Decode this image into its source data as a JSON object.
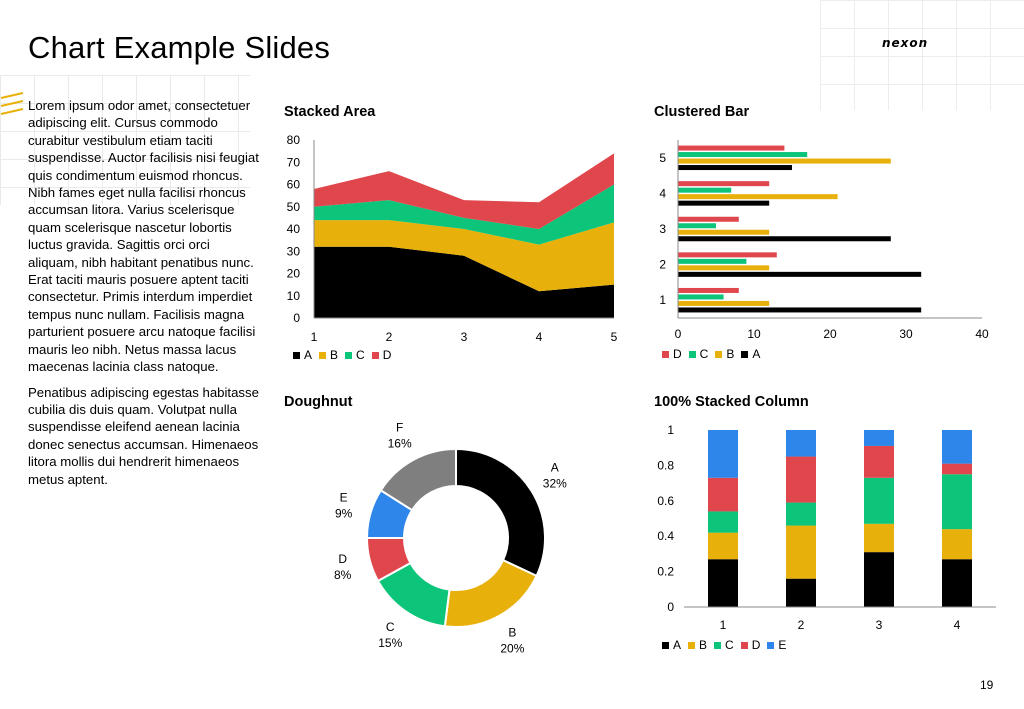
{
  "slide": {
    "title": "Chart Example Slides",
    "logo_text": "nexon",
    "page_number": "19",
    "paragraphs": [
      "Lorem ipsum odor amet, consectetuer adipiscing elit. Cursus commodo curabitur vestibulum etiam taciti suspendisse. Auctor facilisis nisi feugiat quis condimentum euismod rhoncus. Nibh fames eget nulla facilisi rhoncus accumsan litora. Varius scelerisque quam scelerisque nascetur lobortis luctus gravida. Sagittis orci orci aliquam, nibh habitant penatibus nunc. Erat taciti mauris posuere aptent taciti consectetur. Primis interdum imperdiet tempus nunc nullam. Facilisis magna parturient posuere arcu natoque facilisi mauris leo nibh. Netus massa lacus maecenas lacinia class natoque.",
      "Penatibus adipiscing egestas habitasse cubilia dis duis quam. Volutpat nulla suspendisse eleifend aenean lacinia donec senectus accumsan. Himenaeos litora mollis dui hendrerit himenaeos metus aptent."
    ]
  },
  "colors": {
    "A": "#000000",
    "B": "#E8B00A",
    "C": "#0CC47A",
    "D": "#E0474C",
    "E": "#2E86EB",
    "F": "#7F7F7F",
    "accent": "#E8B00A"
  },
  "chart_data": [
    {
      "id": "stacked-area",
      "type": "area",
      "title": "Stacked Area",
      "x": [
        1,
        2,
        3,
        4,
        5
      ],
      "ylim": [
        0,
        80
      ],
      "yticks": [
        0,
        10,
        20,
        30,
        40,
        50,
        60,
        70,
        80
      ],
      "series": [
        {
          "name": "A",
          "values": [
            32,
            32,
            28,
            12,
            15
          ]
        },
        {
          "name": "B",
          "values": [
            12,
            12,
            12,
            21,
            28
          ]
        },
        {
          "name": "C",
          "values": [
            6,
            9,
            5,
            7,
            17
          ]
        },
        {
          "name": "D",
          "values": [
            8,
            13,
            8,
            12,
            14
          ]
        }
      ],
      "legend": [
        "A",
        "B",
        "C",
        "D"
      ]
    },
    {
      "id": "clustered-bar",
      "type": "bar",
      "orientation": "horizontal",
      "title": "Clustered Bar",
      "categories": [
        1,
        2,
        3,
        4,
        5
      ],
      "xlim": [
        0,
        40
      ],
      "xticks": [
        0,
        10,
        20,
        30,
        40
      ],
      "series": [
        {
          "name": "A",
          "values": [
            32,
            32,
            28,
            12,
            15
          ]
        },
        {
          "name": "B",
          "values": [
            12,
            12,
            12,
            21,
            28
          ]
        },
        {
          "name": "C",
          "values": [
            6,
            9,
            5,
            7,
            17
          ]
        },
        {
          "name": "D",
          "values": [
            8,
            13,
            8,
            12,
            14
          ]
        }
      ],
      "legend": [
        "D",
        "C",
        "B",
        "A"
      ]
    },
    {
      "id": "doughnut",
      "type": "pie",
      "title": "Doughnut",
      "slices": [
        {
          "name": "A",
          "value": 32,
          "label": "32%"
        },
        {
          "name": "B",
          "value": 20,
          "label": "20%"
        },
        {
          "name": "C",
          "value": 15,
          "label": "15%"
        },
        {
          "name": "D",
          "value": 8,
          "label": "8%"
        },
        {
          "name": "E",
          "value": 9,
          "label": "9%"
        },
        {
          "name": "F",
          "value": 16,
          "label": "16%"
        }
      ]
    },
    {
      "id": "stacked-column-100",
      "type": "bar",
      "title": "100% Stacked Column",
      "categories": [
        1,
        2,
        3,
        4
      ],
      "ylim": [
        0,
        1
      ],
      "yticks": [
        "0",
        "0.2",
        "0.4",
        "0.6",
        "0.8",
        "1"
      ],
      "series": [
        {
          "name": "A",
          "values": [
            0.27,
            0.16,
            0.31,
            0.27
          ]
        },
        {
          "name": "B",
          "values": [
            0.15,
            0.3,
            0.16,
            0.17
          ]
        },
        {
          "name": "C",
          "values": [
            0.12,
            0.13,
            0.26,
            0.31
          ]
        },
        {
          "name": "D",
          "values": [
            0.19,
            0.26,
            0.18,
            0.06
          ]
        },
        {
          "name": "E",
          "values": [
            0.27,
            0.15,
            0.09,
            0.19
          ]
        }
      ],
      "legend": [
        "A",
        "B",
        "C",
        "D",
        "E"
      ]
    }
  ]
}
